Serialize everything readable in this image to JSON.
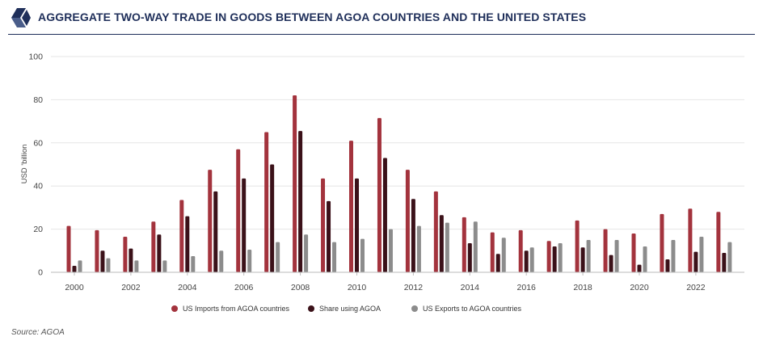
{
  "header": {
    "title": "AGGREGATE TWO-WAY TRADE IN GOODS BETWEEN AGOA COUNTRIES AND THE UNITED STATES",
    "logo_icon": "brand-logo-icon"
  },
  "source": "Source: AGOA",
  "colors": {
    "title": "#1f2f5a",
    "us_imports": "#a3333d",
    "share_agoa": "#3b1119",
    "us_exports": "#8c8c8c",
    "grid": "#e6e6e6",
    "axis_text": "#444444"
  },
  "chart_data": {
    "type": "bar",
    "title": "",
    "xlabel": "",
    "ylabel": "USD 'billion",
    "ylim": [
      0,
      100
    ],
    "yticks": [
      "0",
      "20",
      "40",
      "60",
      "80",
      "100"
    ],
    "xtick_labels": [
      "2000",
      "2002",
      "2004",
      "2006",
      "2008",
      "2010",
      "2012",
      "2014",
      "2016",
      "2018",
      "2020",
      "2022"
    ],
    "categories": [
      "2000",
      "2001",
      "2002",
      "2003",
      "2004",
      "2005",
      "2006",
      "2007",
      "2008",
      "2009",
      "2010",
      "2011",
      "2012",
      "2013",
      "2014",
      "2015",
      "2016",
      "2017",
      "2018",
      "2019",
      "2020",
      "2021",
      "2022",
      "2023"
    ],
    "grid": true,
    "legend_position": "bottom",
    "series": [
      {
        "name": "US Imports from AGOA countries",
        "color": "#a3333d",
        "values": [
          21.5,
          19.5,
          16.5,
          23.5,
          33.5,
          47.5,
          57,
          65,
          82,
          43.5,
          61,
          71.5,
          47.5,
          37.5,
          25.5,
          18.5,
          19.5,
          14.5,
          24,
          20,
          18,
          27,
          29.5,
          28
        ]
      },
      {
        "name": "Share using AGOA",
        "color": "#3b1119",
        "values": [
          3,
          10,
          11,
          17.5,
          26,
          37.5,
          43.5,
          50,
          65.5,
          33,
          43.5,
          53,
          34,
          26.5,
          13.5,
          8.5,
          10,
          12,
          11.5,
          8,
          3.5,
          6,
          9.5,
          9
        ]
      },
      {
        "name": "US Exports to AGOA countries",
        "color": "#8c8c8c",
        "values": [
          5.5,
          6.5,
          5.5,
          5.5,
          7.5,
          10,
          10.5,
          14,
          17.5,
          14,
          15.5,
          20,
          21.5,
          23,
          23.5,
          16,
          11.5,
          13.5,
          15,
          15,
          12,
          15,
          16.5,
          14
        ]
      }
    ]
  }
}
